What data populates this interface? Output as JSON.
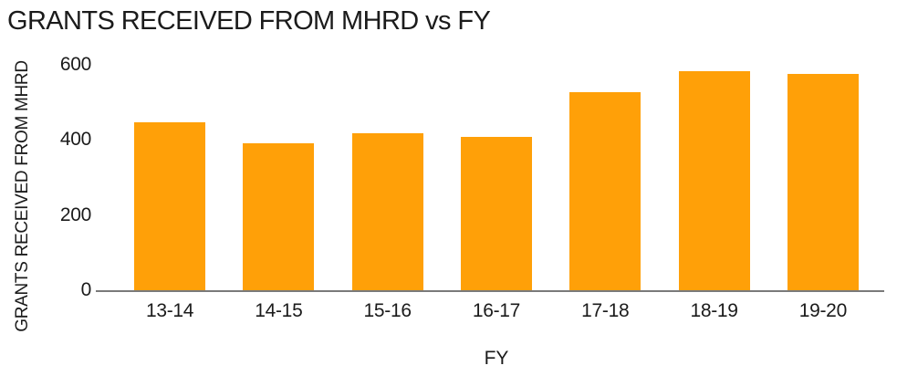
{
  "title": "GRANTS RECEIVED FROM MHRD vs FY",
  "colors": {
    "bar": "#FFA008",
    "axis_line": "#7A7A7A",
    "text": "#1B1B1B",
    "background": "#FFFFFF"
  },
  "chart_data": {
    "type": "bar",
    "title": "GRANTS RECEIVED FROM MHRD vs FY",
    "xlabel": "FY",
    "ylabel": "GRANTS RECEIVED FROM MHRD",
    "categories": [
      "13-14",
      "14-15",
      "15-16",
      "16-17",
      "17-18",
      "18-19",
      "19-20"
    ],
    "values": [
      446,
      391,
      419,
      408,
      527,
      582,
      576
    ],
    "ylim": [
      0,
      600
    ],
    "yticks": [
      0,
      200,
      400,
      600
    ],
    "grid": false,
    "legend": false,
    "bar_color": "#FFA008"
  }
}
